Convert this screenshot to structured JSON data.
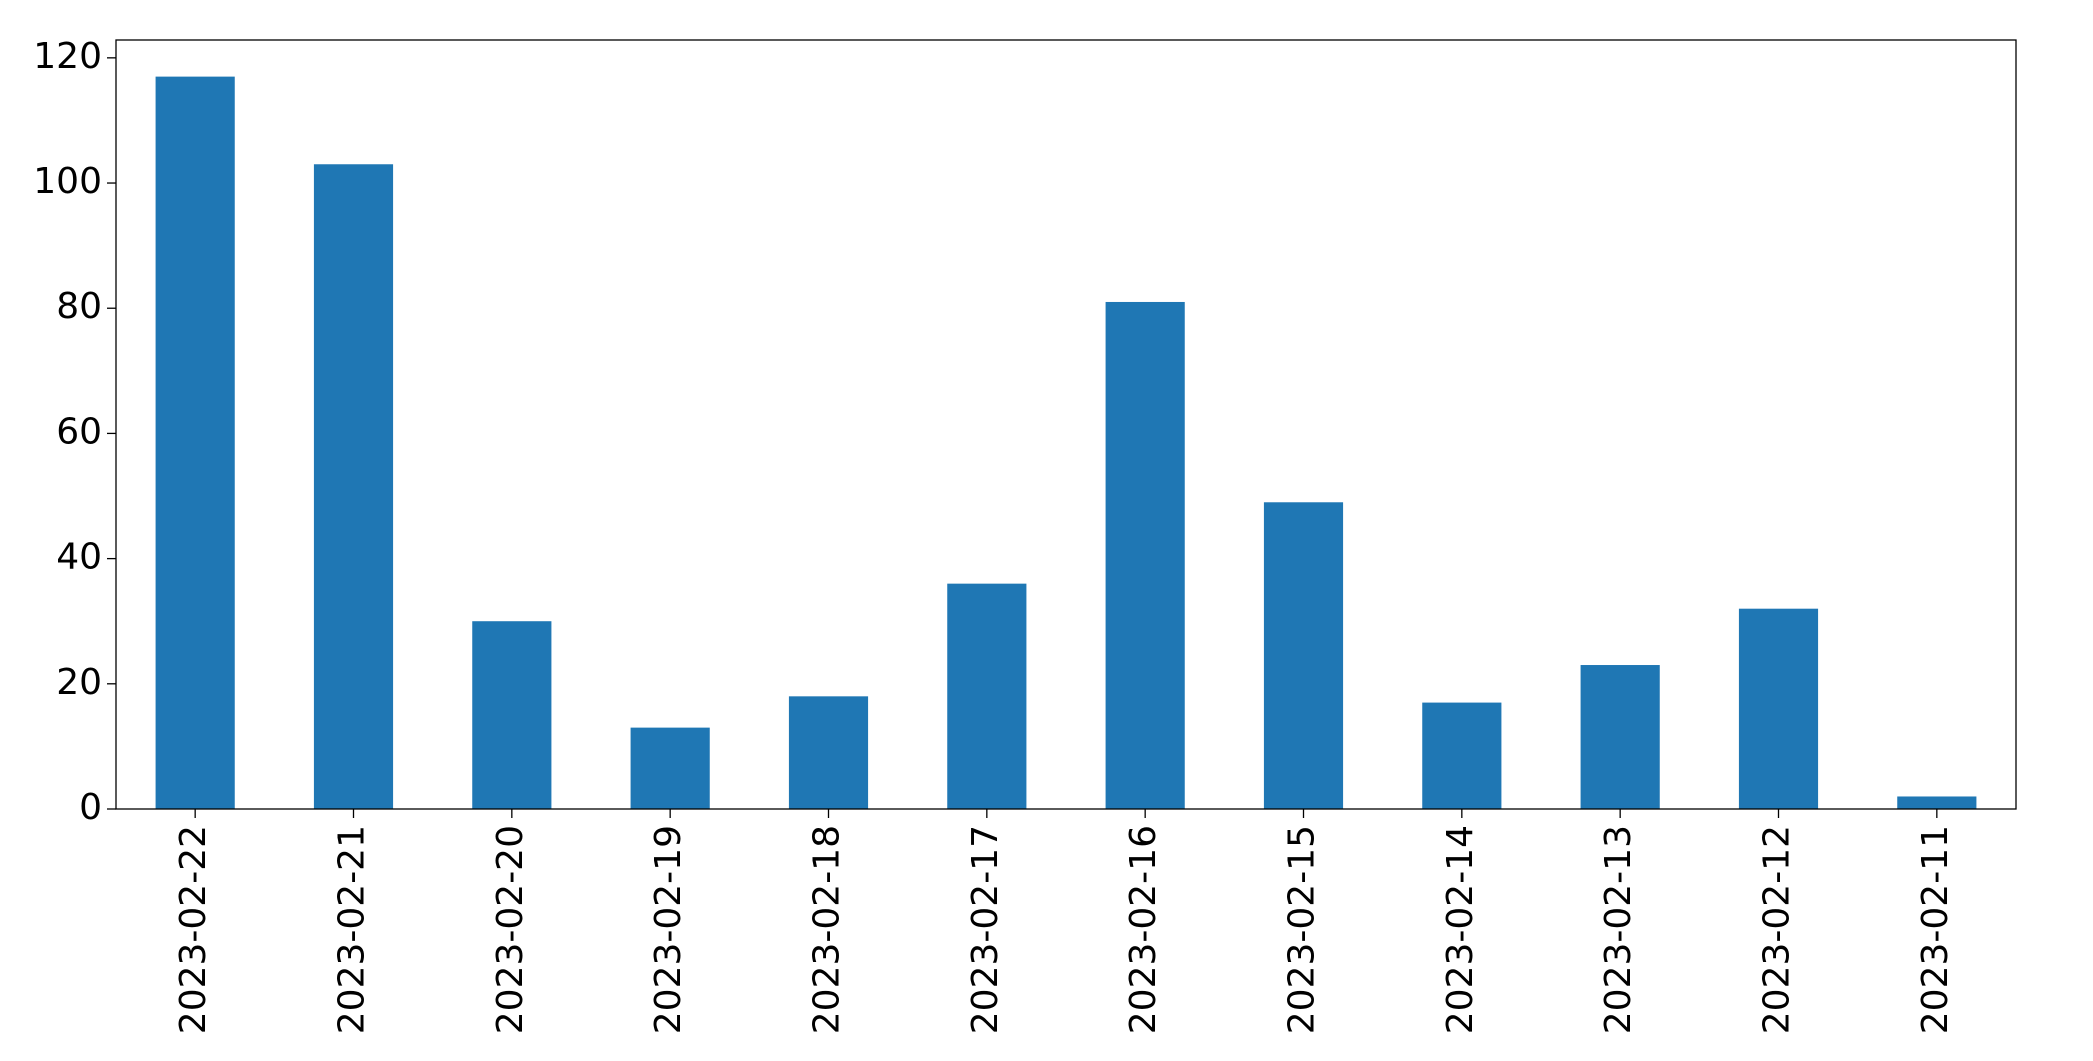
{
  "chart_data": {
    "type": "bar",
    "categories": [
      "2023-02-22",
      "2023-02-21",
      "2023-02-20",
      "2023-02-19",
      "2023-02-18",
      "2023-02-17",
      "2023-02-16",
      "2023-02-15",
      "2023-02-14",
      "2023-02-13",
      "2023-02-12",
      "2023-02-11"
    ],
    "values": [
      117,
      103,
      30,
      13,
      18,
      36,
      81,
      49,
      17,
      23,
      32,
      2
    ],
    "color": "#1f77b4",
    "ylim": [
      0,
      122.85
    ],
    "yticks": [
      0,
      20,
      40,
      60,
      80,
      100,
      120
    ],
    "grid": false
  }
}
